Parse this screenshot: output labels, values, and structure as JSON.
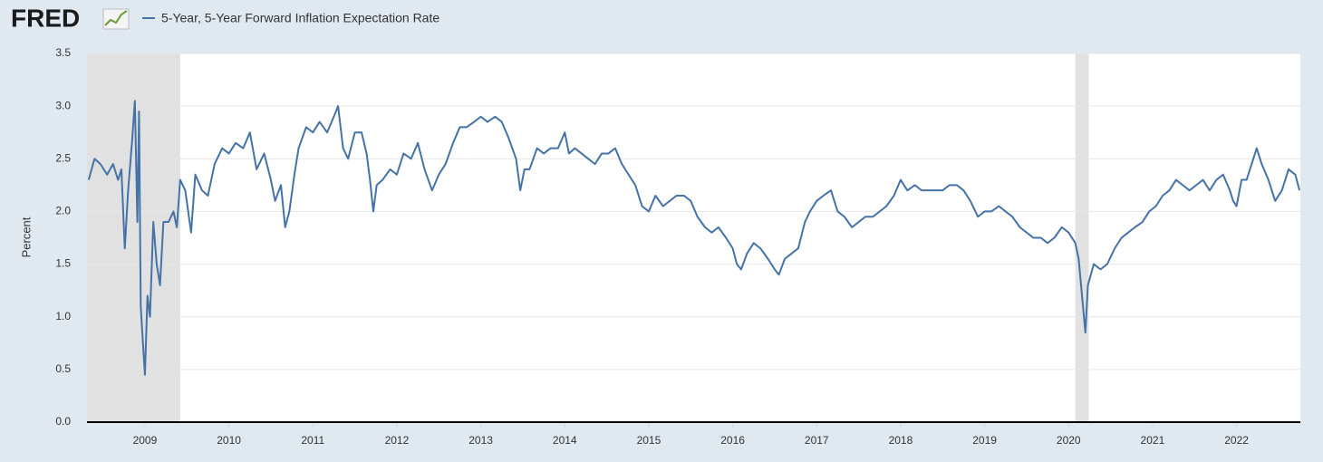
{
  "logo": "FRED",
  "chart_data": {
    "type": "line",
    "ylabel": "Percent",
    "xlim": [
      2008.31,
      2022.76
    ],
    "xticks": [
      2009,
      2010,
      2011,
      2012,
      2013,
      2014,
      2015,
      2016,
      2017,
      2018,
      2019,
      2020,
      2021,
      2022
    ],
    "ylim": [
      0,
      3.5
    ],
    "yticks": [
      {
        "value": 0,
        "label": "0.0"
      },
      0.5,
      {
        "value": 1,
        "label": "1.0"
      },
      1.5,
      {
        "value": 2,
        "label": "2.0"
      },
      2.5,
      {
        "value": 3,
        "label": "3.0"
      },
      3.5
    ],
    "grid": true,
    "recessions": [
      [
        2008.31,
        2009.42
      ],
      [
        2020.08,
        2020.24
      ]
    ],
    "x": [
      2008.33,
      2008.4,
      2008.47,
      2008.55,
      2008.62,
      2008.68,
      2008.72,
      2008.76,
      2008.8,
      2008.85,
      2008.88,
      2008.91,
      2008.93,
      2008.95,
      2008.98,
      2009.0,
      2009.03,
      2009.06,
      2009.1,
      2009.14,
      2009.18,
      2009.22,
      2009.28,
      2009.34,
      2009.38,
      2009.42,
      2009.48,
      2009.55,
      2009.6,
      2009.68,
      2009.75,
      2009.83,
      2009.92,
      2010.0,
      2010.08,
      2010.17,
      2010.25,
      2010.33,
      2010.42,
      2010.5,
      2010.55,
      2010.62,
      2010.67,
      2010.72,
      2010.78,
      2010.83,
      2010.92,
      2011.0,
      2011.08,
      2011.17,
      2011.25,
      2011.3,
      2011.36,
      2011.42,
      2011.5,
      2011.58,
      2011.64,
      2011.68,
      2011.72,
      2011.76,
      2011.83,
      2011.92,
      2012.0,
      2012.08,
      2012.17,
      2012.25,
      2012.33,
      2012.42,
      2012.5,
      2012.58,
      2012.67,
      2012.75,
      2012.83,
      2012.92,
      2013.0,
      2013.08,
      2013.17,
      2013.25,
      2013.33,
      2013.42,
      2013.47,
      2013.52,
      2013.58,
      2013.67,
      2013.75,
      2013.83,
      2013.92,
      2014.0,
      2014.05,
      2014.12,
      2014.2,
      2014.28,
      2014.36,
      2014.44,
      2014.52,
      2014.6,
      2014.68,
      2014.76,
      2014.84,
      2014.92,
      2015.0,
      2015.08,
      2015.17,
      2015.25,
      2015.33,
      2015.42,
      2015.5,
      2015.58,
      2015.67,
      2015.75,
      2015.83,
      2015.92,
      2016.0,
      2016.05,
      2016.1,
      2016.17,
      2016.25,
      2016.33,
      2016.42,
      2016.5,
      2016.55,
      2016.62,
      2016.7,
      2016.78,
      2016.86,
      2016.92,
      2017.0,
      2017.08,
      2017.17,
      2017.25,
      2017.33,
      2017.42,
      2017.5,
      2017.58,
      2017.67,
      2017.75,
      2017.83,
      2017.92,
      2018.0,
      2018.08,
      2018.17,
      2018.25,
      2018.33,
      2018.42,
      2018.5,
      2018.58,
      2018.67,
      2018.75,
      2018.83,
      2018.92,
      2019.0,
      2019.08,
      2019.17,
      2019.25,
      2019.33,
      2019.42,
      2019.5,
      2019.58,
      2019.67,
      2019.75,
      2019.83,
      2019.92,
      2020.0,
      2020.08,
      2020.12,
      2020.16,
      2020.2,
      2020.23,
      2020.3,
      2020.38,
      2020.46,
      2020.55,
      2020.63,
      2020.71,
      2020.79,
      2020.88,
      2020.96,
      2021.04,
      2021.12,
      2021.2,
      2021.28,
      2021.36,
      2021.44,
      2021.52,
      2021.6,
      2021.68,
      2021.76,
      2021.84,
      2021.92,
      2021.96,
      2022.0,
      2022.06,
      2022.12,
      2022.2,
      2022.24,
      2022.3,
      2022.38,
      2022.46,
      2022.54,
      2022.62,
      2022.7,
      2022.75
    ],
    "series": [
      {
        "name": "5-Year, 5-Year Forward Inflation Expectation Rate",
        "color": "#4572a7",
        "values": [
          2.3,
          2.5,
          2.45,
          2.35,
          2.45,
          2.3,
          2.4,
          1.65,
          2.2,
          2.7,
          3.05,
          1.9,
          2.95,
          1.1,
          0.7,
          0.45,
          1.2,
          1.0,
          1.9,
          1.5,
          1.3,
          1.9,
          1.9,
          2.0,
          1.85,
          2.3,
          2.2,
          1.8,
          2.35,
          2.2,
          2.15,
          2.45,
          2.6,
          2.55,
          2.65,
          2.6,
          2.75,
          2.4,
          2.55,
          2.3,
          2.1,
          2.25,
          1.85,
          2.0,
          2.35,
          2.6,
          2.8,
          2.75,
          2.85,
          2.75,
          2.9,
          3.0,
          2.6,
          2.5,
          2.75,
          2.75,
          2.55,
          2.3,
          2.0,
          2.25,
          2.3,
          2.4,
          2.35,
          2.55,
          2.5,
          2.65,
          2.4,
          2.2,
          2.35,
          2.45,
          2.65,
          2.8,
          2.8,
          2.85,
          2.9,
          2.85,
          2.9,
          2.85,
          2.7,
          2.5,
          2.2,
          2.4,
          2.4,
          2.6,
          2.55,
          2.6,
          2.6,
          2.75,
          2.55,
          2.6,
          2.55,
          2.5,
          2.45,
          2.55,
          2.55,
          2.6,
          2.45,
          2.35,
          2.25,
          2.05,
          2.0,
          2.15,
          2.05,
          2.1,
          2.15,
          2.15,
          2.1,
          1.95,
          1.85,
          1.8,
          1.85,
          1.75,
          1.65,
          1.5,
          1.45,
          1.6,
          1.7,
          1.65,
          1.55,
          1.45,
          1.4,
          1.55,
          1.6,
          1.65,
          1.9,
          2.0,
          2.1,
          2.15,
          2.2,
          2.0,
          1.95,
          1.85,
          1.9,
          1.95,
          1.95,
          2.0,
          2.05,
          2.15,
          2.3,
          2.2,
          2.25,
          2.2,
          2.2,
          2.2,
          2.2,
          2.25,
          2.25,
          2.2,
          2.1,
          1.95,
          2.0,
          2.0,
          2.05,
          2.0,
          1.95,
          1.85,
          1.8,
          1.75,
          1.75,
          1.7,
          1.75,
          1.85,
          1.8,
          1.7,
          1.55,
          1.2,
          0.85,
          1.3,
          1.5,
          1.45,
          1.5,
          1.65,
          1.75,
          1.8,
          1.85,
          1.9,
          2.0,
          2.05,
          2.15,
          2.2,
          2.3,
          2.25,
          2.2,
          2.25,
          2.3,
          2.2,
          2.3,
          2.35,
          2.2,
          2.1,
          2.05,
          2.3,
          2.3,
          2.5,
          2.6,
          2.45,
          2.3,
          2.1,
          2.2,
          2.4,
          2.35,
          2.2
        ]
      }
    ]
  }
}
